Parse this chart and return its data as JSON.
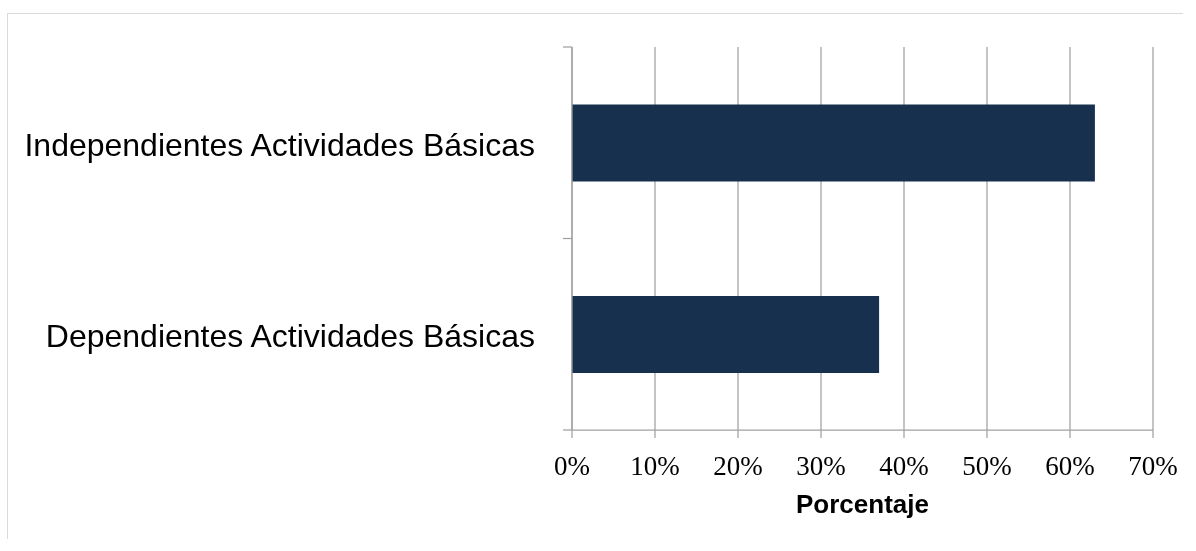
{
  "chart_data": {
    "type": "bar",
    "orientation": "horizontal",
    "categories": [
      "Independientes Actividades Básicas",
      "Dependientes Actividades Básicas"
    ],
    "values": [
      63,
      37
    ],
    "color": "#16304e",
    "xlabel": "Porcentaje",
    "xlim": [
      0,
      70
    ],
    "xticks": [
      {
        "value": 0,
        "label": "0%"
      },
      {
        "value": 10,
        "label": "10%"
      },
      {
        "value": 20,
        "label": "20%"
      },
      {
        "value": 30,
        "label": "30%"
      },
      {
        "value": 40,
        "label": "40%"
      },
      {
        "value": 50,
        "label": "50%"
      },
      {
        "value": 60,
        "label": "60%"
      },
      {
        "value": 70,
        "label": "70%"
      }
    ],
    "grid": "x"
  }
}
